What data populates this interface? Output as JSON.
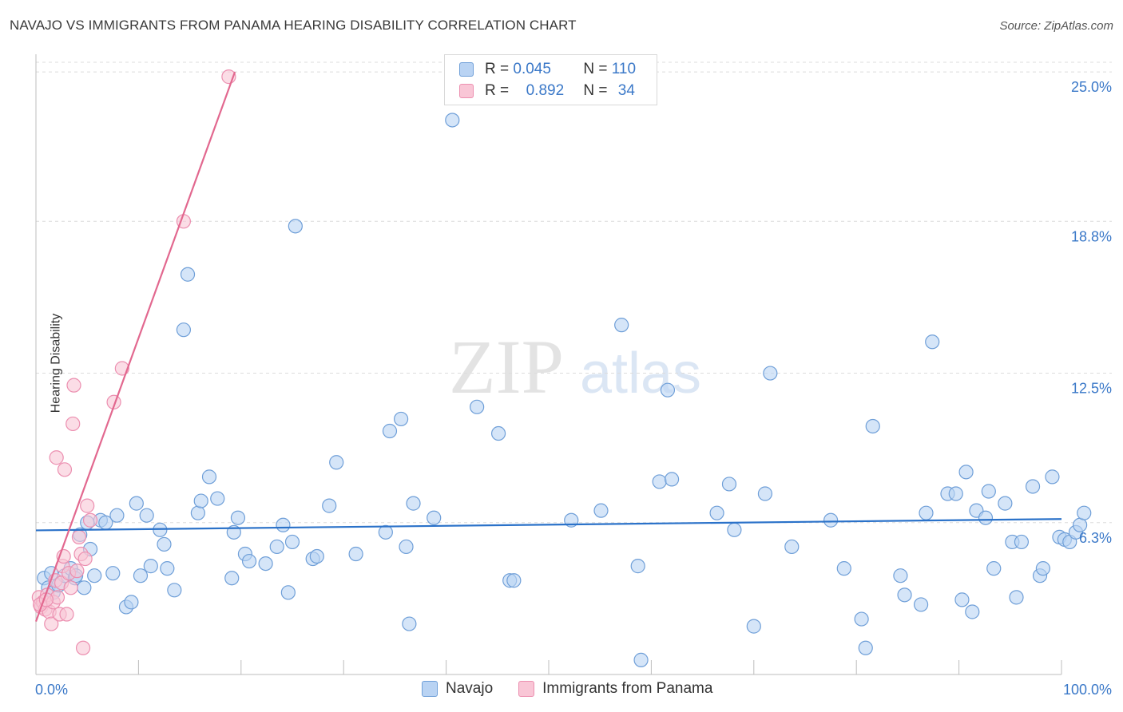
{
  "title": "NAVAJO VS IMMIGRANTS FROM PANAMA HEARING DISABILITY CORRELATION CHART",
  "source": "Source: ZipAtlas.com",
  "watermark": {
    "zip": "ZIP",
    "atlas": "atlas"
  },
  "legend_top": {
    "rows": [
      {
        "r_label": "R = ",
        "r_value": "0.045",
        "n_label": "N = ",
        "n_value": "110"
      },
      {
        "r_label": "R = ",
        "r_value": "0.892",
        "n_label": "N = ",
        "n_value": "34"
      }
    ]
  },
  "legend_bottom": [
    "Navajo",
    "Immigrants from Panama"
  ],
  "colors": {
    "navajo_fill": "#b9d3f3",
    "navajo_stroke": "#6f9fd8",
    "navajo_line": "#2b72c9",
    "panama_fill": "#f9c6d6",
    "panama_stroke": "#ec8fb0",
    "panama_line": "#e2688f",
    "tick_text": "#3a78c8",
    "grid": "#dcdcdc"
  },
  "chart_data": {
    "type": "scatter",
    "xlabel": "",
    "ylabel": "Hearing Disability",
    "x_tick_labels": [
      "0.0%",
      "100.0%"
    ],
    "y_tick_labels": [
      "6.3%",
      "12.5%",
      "18.8%",
      "25.0%"
    ],
    "y_ticks": [
      6.3,
      12.5,
      18.8,
      25.0
    ],
    "xlim": [
      0,
      100
    ],
    "ylim": [
      0,
      25.4
    ],
    "grid": true,
    "series": [
      {
        "name": "Navajo",
        "trend": [
          [
            0,
            5.98
          ],
          [
            100,
            6.45
          ]
        ],
        "points": [
          [
            0.8,
            4.0
          ],
          [
            1.2,
            3.6
          ],
          [
            1.7,
            3.4
          ],
          [
            2.2,
            3.7
          ],
          [
            2.8,
            4.1
          ],
          [
            3.4,
            4.4
          ],
          [
            3.8,
            4.0
          ],
          [
            4.3,
            5.8
          ],
          [
            4.7,
            3.6
          ],
          [
            5.3,
            5.2
          ],
          [
            5.7,
            4.1
          ],
          [
            6.3,
            6.4
          ],
          [
            6.8,
            6.3
          ],
          [
            7.5,
            4.2
          ],
          [
            7.9,
            6.6
          ],
          [
            8.8,
            2.8
          ],
          [
            9.3,
            3.0
          ],
          [
            9.8,
            7.1
          ],
          [
            10.2,
            4.1
          ],
          [
            10.8,
            6.6
          ],
          [
            11.2,
            4.5
          ],
          [
            12.1,
            6.0
          ],
          [
            12.5,
            5.4
          ],
          [
            12.8,
            4.4
          ],
          [
            13.5,
            3.5
          ],
          [
            14.4,
            14.3
          ],
          [
            14.8,
            16.6
          ],
          [
            15.8,
            6.7
          ],
          [
            16.1,
            7.2
          ],
          [
            16.9,
            8.2
          ],
          [
            17.7,
            7.3
          ],
          [
            19.1,
            4.0
          ],
          [
            19.3,
            5.9
          ],
          [
            19.7,
            6.5
          ],
          [
            20.4,
            5.0
          ],
          [
            20.8,
            4.7
          ],
          [
            22.4,
            4.6
          ],
          [
            23.5,
            5.3
          ],
          [
            24.1,
            6.2
          ],
          [
            24.6,
            3.4
          ],
          [
            25.0,
            5.5
          ],
          [
            25.3,
            18.6
          ],
          [
            27.0,
            4.8
          ],
          [
            27.4,
            4.9
          ],
          [
            28.6,
            7.0
          ],
          [
            29.3,
            8.8
          ],
          [
            31.2,
            5.0
          ],
          [
            34.1,
            5.9
          ],
          [
            34.5,
            10.1
          ],
          [
            35.6,
            10.6
          ],
          [
            36.1,
            5.3
          ],
          [
            36.4,
            2.1
          ],
          [
            36.8,
            7.1
          ],
          [
            38.8,
            6.5
          ],
          [
            40.6,
            23.0
          ],
          [
            43.0,
            11.1
          ],
          [
            45.1,
            10.0
          ],
          [
            46.2,
            3.9
          ],
          [
            46.6,
            3.9
          ],
          [
            52.2,
            6.4
          ],
          [
            55.1,
            6.8
          ],
          [
            57.1,
            14.5
          ],
          [
            58.7,
            4.5
          ],
          [
            59.0,
            0.6
          ],
          [
            60.8,
            8.0
          ],
          [
            61.6,
            11.8
          ],
          [
            62.0,
            8.1
          ],
          [
            66.4,
            6.7
          ],
          [
            67.6,
            7.9
          ],
          [
            68.1,
            6.0
          ],
          [
            70.0,
            2.0
          ],
          [
            71.1,
            7.5
          ],
          [
            71.6,
            12.5
          ],
          [
            73.7,
            5.3
          ],
          [
            77.5,
            6.4
          ],
          [
            78.8,
            4.4
          ],
          [
            80.5,
            2.3
          ],
          [
            80.9,
            1.1
          ],
          [
            81.6,
            10.3
          ],
          [
            84.3,
            4.1
          ],
          [
            84.7,
            3.3
          ],
          [
            86.3,
            2.9
          ],
          [
            86.8,
            6.7
          ],
          [
            87.4,
            13.8
          ],
          [
            88.9,
            7.5
          ],
          [
            89.7,
            7.5
          ],
          [
            90.3,
            3.1
          ],
          [
            90.7,
            8.4
          ],
          [
            91.3,
            2.6
          ],
          [
            91.7,
            6.8
          ],
          [
            92.6,
            6.5
          ],
          [
            92.9,
            7.6
          ],
          [
            93.4,
            4.4
          ],
          [
            94.5,
            7.1
          ],
          [
            95.2,
            5.5
          ],
          [
            95.6,
            3.2
          ],
          [
            96.1,
            5.5
          ],
          [
            97.2,
            7.8
          ],
          [
            97.9,
            4.1
          ],
          [
            98.2,
            4.4
          ],
          [
            99.1,
            8.2
          ],
          [
            99.8,
            5.7
          ],
          [
            100.3,
            5.6
          ],
          [
            100.8,
            5.5
          ],
          [
            101.4,
            5.9
          ],
          [
            101.8,
            6.2
          ],
          [
            102.2,
            6.7
          ],
          [
            3.9,
            4.1
          ],
          [
            5.0,
            6.3
          ],
          [
            1.5,
            4.2
          ]
        ]
      },
      {
        "name": "Immigrants from Panama",
        "trend": [
          [
            0,
            2.2
          ],
          [
            19.4,
            25.0
          ]
        ],
        "points": [
          [
            0.3,
            3.2
          ],
          [
            0.5,
            2.8
          ],
          [
            0.7,
            3.0
          ],
          [
            0.9,
            2.7
          ],
          [
            1.1,
            3.3
          ],
          [
            1.3,
            2.6
          ],
          [
            1.5,
            2.1
          ],
          [
            1.7,
            3.0
          ],
          [
            1.9,
            3.9
          ],
          [
            2.0,
            9.0
          ],
          [
            2.1,
            3.2
          ],
          [
            2.3,
            2.5
          ],
          [
            2.5,
            3.8
          ],
          [
            2.6,
            4.5
          ],
          [
            2.7,
            4.9
          ],
          [
            2.8,
            8.5
          ],
          [
            3.0,
            2.5
          ],
          [
            3.2,
            4.2
          ],
          [
            3.4,
            3.6
          ],
          [
            3.6,
            10.4
          ],
          [
            3.7,
            12.0
          ],
          [
            4.0,
            4.3
          ],
          [
            4.2,
            5.7
          ],
          [
            4.4,
            5.0
          ],
          [
            4.6,
            1.1
          ],
          [
            4.8,
            4.8
          ],
          [
            5.0,
            7.0
          ],
          [
            5.3,
            6.4
          ],
          [
            7.6,
            11.3
          ],
          [
            8.4,
            12.7
          ],
          [
            14.4,
            18.8
          ],
          [
            18.8,
            24.8
          ],
          [
            0.4,
            2.9
          ],
          [
            1.0,
            3.1
          ]
        ]
      }
    ]
  }
}
